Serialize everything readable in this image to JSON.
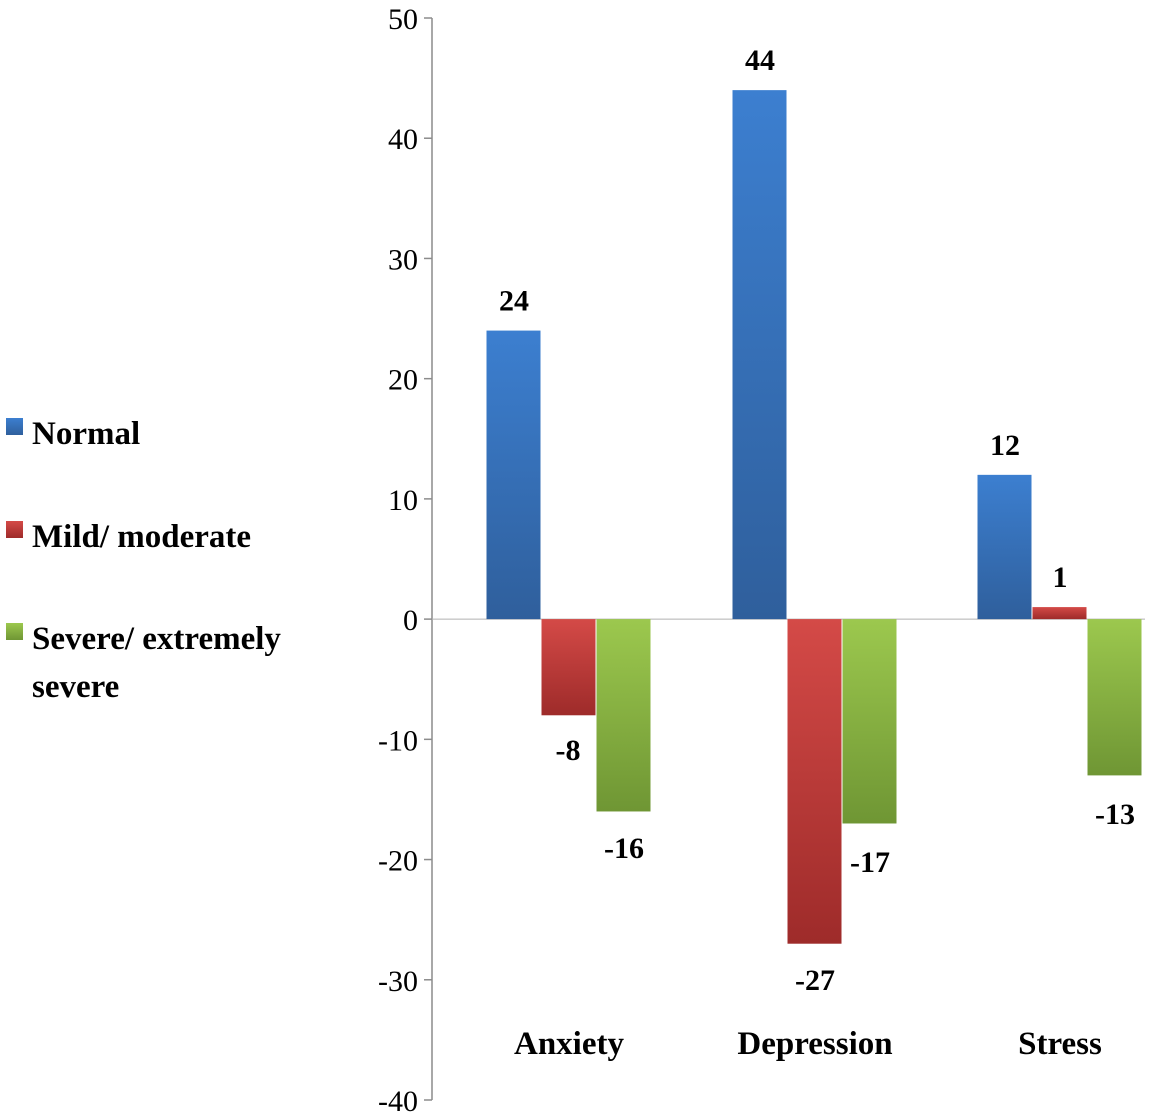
{
  "chart_data": {
    "type": "bar",
    "title": "",
    "xlabel": "",
    "ylabel": "",
    "categories": [
      "Anxiety",
      "Depression",
      "Stress"
    ],
    "series": [
      {
        "name": "Normal",
        "color": "#3A78C3",
        "values": [
          24,
          44,
          12
        ]
      },
      {
        "name": "Mild/ moderate",
        "color": "#C8383A",
        "values": [
          -8,
          -27,
          1
        ]
      },
      {
        "name": "Severe/ extremely severe",
        "color": "#8DB843",
        "values": [
          -16,
          -17,
          -13
        ]
      }
    ],
    "legend": {
      "position": "left",
      "entries": [
        {
          "lines": [
            "Normal"
          ]
        },
        {
          "lines": [
            "Mild/ moderate"
          ]
        },
        {
          "lines": [
            "Severe/ extremely",
            "severe"
          ]
        }
      ]
    },
    "yticks": [
      "-40",
      "-30",
      "-20",
      "-10",
      "0",
      "10",
      "20",
      "30",
      "40",
      "50"
    ],
    "ylim": [
      -40,
      50
    ],
    "grid": false
  }
}
